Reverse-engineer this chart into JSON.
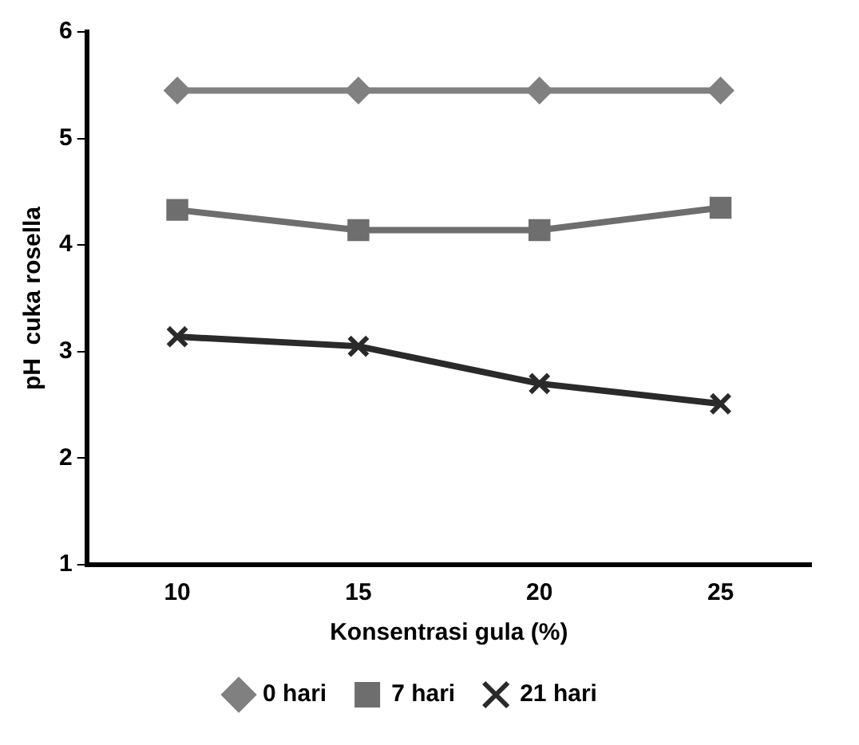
{
  "chart_data": {
    "type": "line",
    "xlabel": "Konsentrasi gula (%)",
    "ylabel": "pH  cuka rosella",
    "categories": [
      "10",
      "15",
      "20",
      "25"
    ],
    "series": [
      {
        "name": "0 hari",
        "color": "#808080",
        "marker": "diamond",
        "values": [
          5.45,
          5.45,
          5.45,
          5.45
        ]
      },
      {
        "name": "7 hari",
        "color": "#6e6e6e",
        "marker": "square",
        "values": [
          4.33,
          4.14,
          4.14,
          4.35
        ]
      },
      {
        "name": "21 hari",
        "color": "#2a2a2a",
        "marker": "cross",
        "values": [
          3.14,
          3.05,
          2.7,
          2.51
        ]
      }
    ],
    "ylim": [
      1,
      6
    ],
    "yticks": [
      1,
      2,
      3,
      4,
      5,
      6
    ],
    "grid": false,
    "legend": "bottom"
  }
}
